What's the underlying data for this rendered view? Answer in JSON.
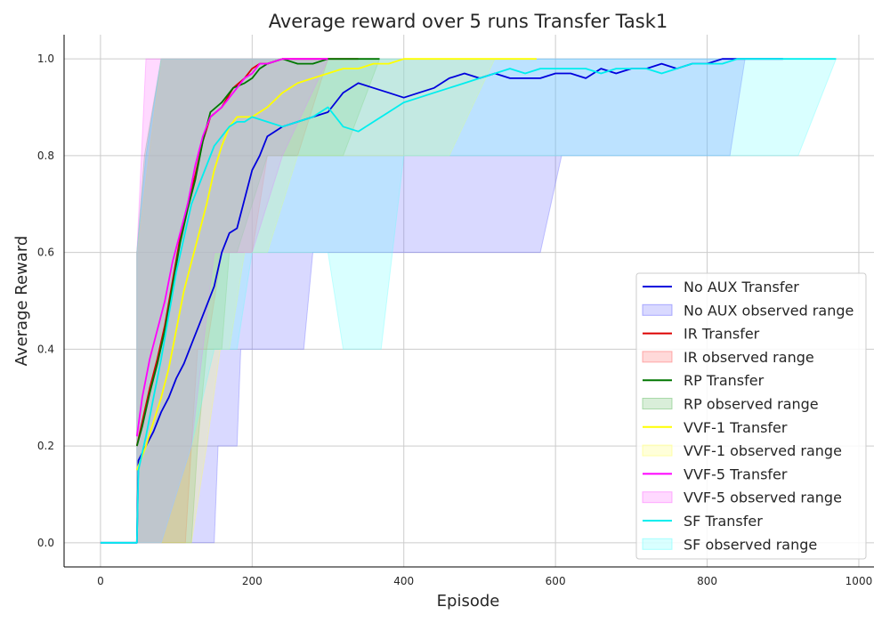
{
  "chart_data": {
    "type": "line",
    "title": "Average reward over 5 runs Transfer Task1",
    "xlabel": "Episode",
    "ylabel": "Average Reward",
    "xlim": [
      -48,
      1020
    ],
    "ylim": [
      -0.05,
      1.05
    ],
    "xticks": [
      0,
      200,
      400,
      600,
      800,
      1000
    ],
    "yticks": [
      0.0,
      0.2,
      0.4,
      0.6,
      0.8,
      1.0
    ],
    "xtick_labels": [
      "0",
      "200",
      "400",
      "600",
      "800",
      "1000"
    ],
    "ytick_labels": [
      "0.0",
      "0.2",
      "0.4",
      "0.6",
      "0.8",
      "1.0"
    ],
    "grid": true,
    "legend_position": "lower-right",
    "series": [
      {
        "name": "No AUX Transfer",
        "color": "#0000dd",
        "x": [
          0,
          48,
          50,
          60,
          70,
          80,
          90,
          100,
          110,
          120,
          130,
          140,
          150,
          160,
          170,
          180,
          190,
          200,
          210,
          220,
          240,
          260,
          280,
          300,
          320,
          340,
          360,
          380,
          400,
          420,
          440,
          460,
          480,
          500,
          520,
          540,
          560,
          580,
          600,
          620,
          640,
          660,
          680,
          700,
          720,
          740,
          760,
          780,
          800,
          820,
          840,
          860,
          880,
          900
        ],
        "y": [
          0.0,
          0.0,
          0.17,
          0.2,
          0.23,
          0.27,
          0.3,
          0.34,
          0.37,
          0.41,
          0.45,
          0.49,
          0.53,
          0.6,
          0.64,
          0.65,
          0.71,
          0.77,
          0.8,
          0.84,
          0.86,
          0.87,
          0.88,
          0.89,
          0.93,
          0.95,
          0.94,
          0.93,
          0.92,
          0.93,
          0.94,
          0.96,
          0.97,
          0.96,
          0.97,
          0.96,
          0.96,
          0.96,
          0.97,
          0.97,
          0.96,
          0.98,
          0.97,
          0.98,
          0.98,
          0.99,
          0.98,
          0.99,
          0.99,
          1.0,
          1.0,
          1.0,
          1.0,
          1.0
        ]
      },
      {
        "name": "IR Transfer",
        "color": "#dd0000",
        "x": [
          48,
          55,
          65,
          75,
          85,
          95,
          105,
          115,
          125,
          135,
          145,
          160,
          175,
          190,
          200,
          210,
          220,
          240,
          260,
          280,
          300,
          320,
          340
        ],
        "y": [
          0.2,
          0.25,
          0.32,
          0.38,
          0.45,
          0.54,
          0.63,
          0.7,
          0.76,
          0.83,
          0.88,
          0.9,
          0.94,
          0.96,
          0.98,
          0.99,
          0.99,
          1.0,
          1.0,
          1.0,
          1.0,
          1.0,
          1.0
        ]
      },
      {
        "name": "RP Transfer",
        "color": "#007700",
        "x": [
          48,
          55,
          65,
          75,
          85,
          95,
          105,
          115,
          125,
          135,
          145,
          160,
          175,
          190,
          200,
          210,
          220,
          240,
          260,
          280,
          300,
          320,
          340,
          368
        ],
        "y": [
          0.2,
          0.24,
          0.31,
          0.37,
          0.44,
          0.53,
          0.62,
          0.69,
          0.75,
          0.83,
          0.89,
          0.91,
          0.94,
          0.95,
          0.96,
          0.98,
          0.99,
          1.0,
          0.99,
          0.99,
          1.0,
          1.0,
          1.0,
          1.0
        ]
      },
      {
        "name": "VVF-1 Transfer",
        "color": "#ffff00",
        "x": [
          48,
          60,
          70,
          80,
          90,
          100,
          110,
          120,
          130,
          140,
          150,
          160,
          170,
          180,
          200,
          220,
          240,
          260,
          280,
          300,
          320,
          340,
          360,
          380,
          400,
          450,
          500,
          550,
          575
        ],
        "y": [
          0.15,
          0.2,
          0.25,
          0.3,
          0.36,
          0.44,
          0.52,
          0.58,
          0.64,
          0.7,
          0.77,
          0.82,
          0.86,
          0.88,
          0.88,
          0.9,
          0.93,
          0.95,
          0.96,
          0.97,
          0.98,
          0.98,
          0.99,
          0.99,
          1.0,
          1.0,
          1.0,
          1.0,
          1.0
        ]
      },
      {
        "name": "VVF-5 Transfer",
        "color": "#ff00ff",
        "x": [
          48,
          55,
          65,
          75,
          85,
          95,
          105,
          115,
          125,
          135,
          145,
          160,
          175,
          190,
          200,
          210,
          220,
          240,
          260,
          280,
          300
        ],
        "y": [
          0.22,
          0.3,
          0.38,
          0.44,
          0.5,
          0.58,
          0.64,
          0.7,
          0.78,
          0.84,
          0.88,
          0.9,
          0.93,
          0.96,
          0.97,
          0.99,
          0.99,
          1.0,
          1.0,
          1.0,
          1.0
        ]
      },
      {
        "name": "SF Transfer",
        "color": "#00eeee",
        "x": [
          0,
          48,
          50,
          60,
          70,
          80,
          90,
          100,
          110,
          120,
          130,
          140,
          150,
          160,
          170,
          180,
          190,
          200,
          220,
          240,
          260,
          280,
          300,
          320,
          340,
          360,
          380,
          400,
          420,
          440,
          460,
          480,
          500,
          520,
          540,
          560,
          580,
          600,
          620,
          640,
          660,
          680,
          700,
          720,
          740,
          760,
          780,
          800,
          820,
          840,
          860,
          880,
          900,
          920,
          940,
          970
        ],
        "y": [
          0.0,
          0.0,
          0.15,
          0.22,
          0.3,
          0.38,
          0.47,
          0.56,
          0.63,
          0.7,
          0.74,
          0.78,
          0.82,
          0.84,
          0.86,
          0.87,
          0.87,
          0.88,
          0.87,
          0.86,
          0.87,
          0.88,
          0.9,
          0.86,
          0.85,
          0.87,
          0.89,
          0.91,
          0.92,
          0.93,
          0.94,
          0.95,
          0.96,
          0.97,
          0.98,
          0.97,
          0.98,
          0.98,
          0.98,
          0.98,
          0.97,
          0.98,
          0.98,
          0.98,
          0.97,
          0.98,
          0.99,
          0.99,
          0.99,
          1.0,
          1.0,
          1.0,
          1.0,
          1.0,
          1.0,
          1.0
        ]
      }
    ],
    "ranges": [
      {
        "name": "No AUX observed range",
        "color": "#6666ff",
        "alpha": 0.25,
        "x": [
          48,
          60,
          80,
          120,
          125,
          140,
          150,
          155,
          170,
          180,
          185,
          200,
          230,
          260,
          268,
          280,
          300,
          320,
          380,
          400,
          460,
          500,
          505,
          580,
          608,
          620,
          820,
          830,
          850,
          900
        ],
        "low": [
          0.0,
          0.0,
          0.0,
          0.0,
          0.0,
          0.0,
          0.0,
          0.2,
          0.2,
          0.2,
          0.4,
          0.4,
          0.4,
          0.4,
          0.4,
          0.6,
          0.6,
          0.6,
          0.6,
          0.6,
          0.6,
          0.6,
          0.6,
          0.6,
          0.8,
          0.8,
          0.8,
          0.8,
          1.0,
          1.0
        ],
        "high": [
          0.6,
          0.8,
          1.0,
          1.0,
          1.0,
          1.0,
          1.0,
          1.0,
          1.0,
          1.0,
          1.0,
          1.0,
          1.0,
          1.0,
          1.0,
          1.0,
          1.0,
          1.0,
          1.0,
          1.0,
          1.0,
          1.0,
          1.0,
          1.0,
          1.0,
          1.0,
          1.0,
          1.0,
          1.0,
          1.0
        ]
      },
      {
        "name": "IR observed range",
        "color": "#ff6666",
        "alpha": 0.25,
        "x": [
          48,
          80,
          112,
          120,
          128,
          140,
          160,
          180,
          200,
          220,
          240,
          260,
          300,
          340
        ],
        "low": [
          0.0,
          0.0,
          0.0,
          0.2,
          0.4,
          0.4,
          0.6,
          0.6,
          0.6,
          0.8,
          0.8,
          0.8,
          1.0,
          1.0
        ],
        "high": [
          0.6,
          1.0,
          1.0,
          1.0,
          1.0,
          1.0,
          1.0,
          1.0,
          1.0,
          1.0,
          1.0,
          1.0,
          1.0,
          1.0
        ]
      },
      {
        "name": "RP observed range",
        "color": "#66bb66",
        "alpha": 0.25,
        "x": [
          48,
          58,
          80,
          120,
          128,
          140,
          160,
          170,
          180,
          220,
          240,
          260,
          300,
          320,
          368
        ],
        "low": [
          0.0,
          0.0,
          0.0,
          0.0,
          0.2,
          0.4,
          0.4,
          0.6,
          0.6,
          0.8,
          0.8,
          0.8,
          0.8,
          0.8,
          1.0
        ],
        "high": [
          0.6,
          0.8,
          1.0,
          1.0,
          1.0,
          1.0,
          1.0,
          1.0,
          1.0,
          1.0,
          1.0,
          1.0,
          1.0,
          1.0,
          1.0
        ]
      },
      {
        "name": "VVF-1 observed range",
        "color": "#ffff66",
        "alpha": 0.25,
        "x": [
          48,
          80,
          120,
          140,
          158,
          170,
          190,
          220,
          260,
          320,
          380,
          460,
          520,
          575
        ],
        "low": [
          0.0,
          0.0,
          0.0,
          0.2,
          0.4,
          0.4,
          0.6,
          0.6,
          0.8,
          0.8,
          0.8,
          0.8,
          1.0,
          1.0
        ],
        "high": [
          0.6,
          1.0,
          1.0,
          1.0,
          1.0,
          1.0,
          1.0,
          1.0,
          1.0,
          1.0,
          1.0,
          1.0,
          1.0,
          1.0
        ]
      },
      {
        "name": "VVF-5 observed range",
        "color": "#ff66ff",
        "alpha": 0.25,
        "x": [
          48,
          60,
          80,
          120,
          135,
          150,
          170,
          200,
          240,
          300
        ],
        "low": [
          0.0,
          0.0,
          0.0,
          0.2,
          0.4,
          0.6,
          0.6,
          0.6,
          0.8,
          1.0
        ],
        "high": [
          0.6,
          1.0,
          1.0,
          1.0,
          1.0,
          1.0,
          1.0,
          1.0,
          1.0,
          1.0
        ]
      },
      {
        "name": "SF observed range",
        "color": "#66ffff",
        "alpha": 0.25,
        "x": [
          48,
          60,
          80,
          120,
          150,
          180,
          200,
          240,
          300,
          320,
          370,
          400,
          470,
          478,
          520,
          600,
          700,
          800,
          870,
          920,
          970
        ],
        "low": [
          0.0,
          0.0,
          0.0,
          0.2,
          0.4,
          0.4,
          0.6,
          0.6,
          0.6,
          0.4,
          0.4,
          0.8,
          0.8,
          0.8,
          0.8,
          0.8,
          0.8,
          0.8,
          0.8,
          0.8,
          1.0
        ],
        "high": [
          0.6,
          0.8,
          1.0,
          1.0,
          1.0,
          1.0,
          1.0,
          1.0,
          1.0,
          1.0,
          1.0,
          1.0,
          1.0,
          1.0,
          1.0,
          1.0,
          1.0,
          1.0,
          1.0,
          1.0,
          1.0
        ]
      }
    ],
    "legend": [
      {
        "label": "No AUX Transfer",
        "kind": "line",
        "color": "#0000dd"
      },
      {
        "label": "No AUX observed range",
        "kind": "patch",
        "color": "#6666ff"
      },
      {
        "label": "IR Transfer",
        "kind": "line",
        "color": "#dd0000"
      },
      {
        "label": "IR observed range",
        "kind": "patch",
        "color": "#ff6666"
      },
      {
        "label": "RP Transfer",
        "kind": "line",
        "color": "#007700"
      },
      {
        "label": "RP observed range",
        "kind": "patch",
        "color": "#66bb66"
      },
      {
        "label": "VVF-1 Transfer",
        "kind": "line",
        "color": "#ffff00"
      },
      {
        "label": "VVF-1 observed range",
        "kind": "patch",
        "color": "#ffff66"
      },
      {
        "label": "VVF-5 Transfer",
        "kind": "line",
        "color": "#ff00ff"
      },
      {
        "label": "VVF-5 observed range",
        "kind": "patch",
        "color": "#ff66ff"
      },
      {
        "label": "SF Transfer",
        "kind": "line",
        "color": "#00eeee"
      },
      {
        "label": "SF observed range",
        "kind": "patch",
        "color": "#66ffff"
      }
    ]
  }
}
